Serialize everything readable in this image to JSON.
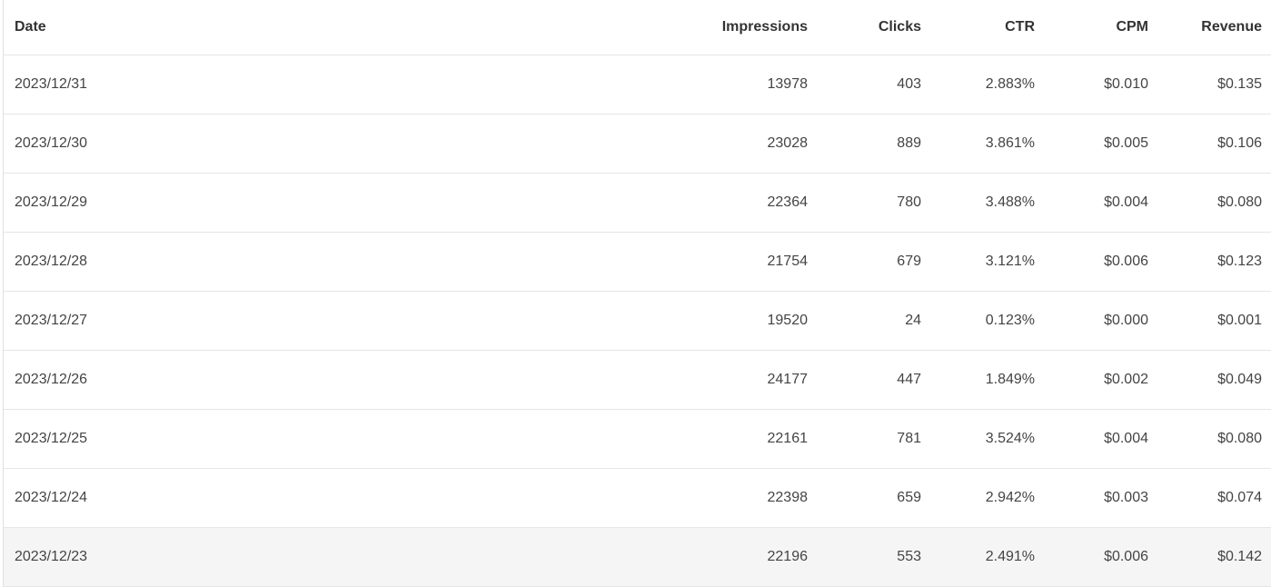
{
  "table": {
    "columns": [
      "Date",
      "Impressions",
      "Clicks",
      "CTR",
      "CPM",
      "Revenue"
    ],
    "rows": [
      [
        "2023/12/31",
        "13978",
        "403",
        "2.883%",
        "$0.010",
        "$0.135"
      ],
      [
        "2023/12/30",
        "23028",
        "889",
        "3.861%",
        "$0.005",
        "$0.106"
      ],
      [
        "2023/12/29",
        "22364",
        "780",
        "3.488%",
        "$0.004",
        "$0.080"
      ],
      [
        "2023/12/28",
        "21754",
        "679",
        "3.121%",
        "$0.006",
        "$0.123"
      ],
      [
        "2023/12/27",
        "19520",
        "24",
        "0.123%",
        "$0.000",
        "$0.001"
      ],
      [
        "2023/12/26",
        "24177",
        "447",
        "1.849%",
        "$0.002",
        "$0.049"
      ],
      [
        "2023/12/25",
        "22161",
        "781",
        "3.524%",
        "$0.004",
        "$0.080"
      ],
      [
        "2023/12/24",
        "22398",
        "659",
        "2.942%",
        "$0.003",
        "$0.074"
      ],
      [
        "2023/12/23",
        "22196",
        "553",
        "2.491%",
        "$0.006",
        "$0.142"
      ]
    ],
    "hovered_row": 8,
    "hover_color": "#f5f5f5"
  }
}
